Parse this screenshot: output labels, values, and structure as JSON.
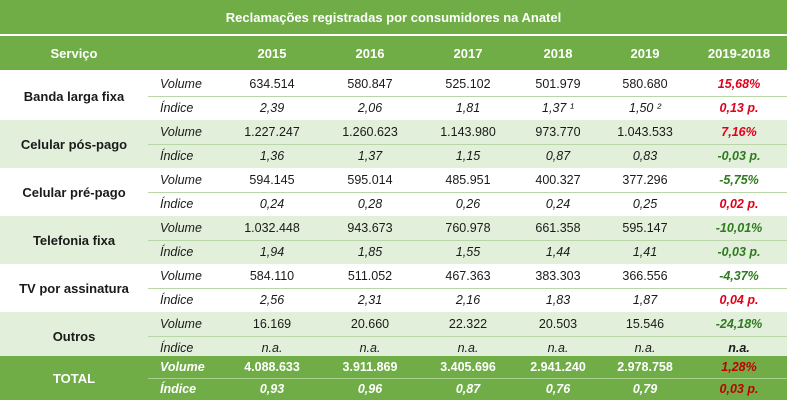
{
  "title": "Reclamações registradas por consumidores na Anatel",
  "header": {
    "service": "Serviço",
    "years": [
      "2015",
      "2016",
      "2017",
      "2018",
      "2019"
    ],
    "change": "2019-2018"
  },
  "services": [
    {
      "name": "Banda larga fixa",
      "volume": {
        "label": "Volume",
        "values": [
          "634.514",
          "580.847",
          "525.102",
          "501.979",
          "580.680"
        ],
        "change": "15,68%",
        "dir": "pos"
      },
      "index": {
        "label": "Índice",
        "values": [
          "2,39",
          "2,06",
          "1,81",
          "1,37 ¹",
          "1,50 ²"
        ],
        "change": "0,13 p.",
        "dir": "pos"
      }
    },
    {
      "name": "Celular pós-pago",
      "volume": {
        "label": "Volume",
        "values": [
          "1.227.247",
          "1.260.623",
          "1.143.980",
          "973.770",
          "1.043.533"
        ],
        "change": "7,16%",
        "dir": "pos"
      },
      "index": {
        "label": "Índice",
        "values": [
          "1,36",
          "1,37",
          "1,15",
          "0,87",
          "0,83"
        ],
        "change": "-0,03 p.",
        "dir": "neg"
      }
    },
    {
      "name": "Celular pré-pago",
      "volume": {
        "label": "Volume",
        "values": [
          "594.145",
          "595.014",
          "485.951",
          "400.327",
          "377.296"
        ],
        "change": "-5,75%",
        "dir": "neg"
      },
      "index": {
        "label": "Índice",
        "values": [
          "0,24",
          "0,28",
          "0,26",
          "0,24",
          "0,25"
        ],
        "change": "0,02 p.",
        "dir": "pos"
      }
    },
    {
      "name": "Telefonia fixa",
      "volume": {
        "label": "Volume",
        "values": [
          "1.032.448",
          "943.673",
          "760.978",
          "661.358",
          "595.147"
        ],
        "change": "-10,01%",
        "dir": "neg"
      },
      "index": {
        "label": "Índice",
        "values": [
          "1,94",
          "1,85",
          "1,55",
          "1,44",
          "1,41"
        ],
        "change": "-0,03 p.",
        "dir": "neg"
      }
    },
    {
      "name": "TV por assinatura",
      "volume": {
        "label": "Volume",
        "values": [
          "584.110",
          "511.052",
          "467.363",
          "383.303",
          "366.556"
        ],
        "change": "-4,37%",
        "dir": "neg"
      },
      "index": {
        "label": "Índice",
        "values": [
          "2,56",
          "2,31",
          "2,16",
          "1,83",
          "1,87"
        ],
        "change": "0,04 p.",
        "dir": "pos"
      }
    },
    {
      "name": "Outros",
      "volume": {
        "label": "Volume",
        "values": [
          "16.169",
          "20.660",
          "22.322",
          "20.503",
          "15.546"
        ],
        "change": "-24,18%",
        "dir": "neg"
      },
      "index": {
        "label": "Índice",
        "values": [
          "n.a.",
          "n.a.",
          "n.a.",
          "n.a.",
          "n.a."
        ],
        "change": "n.a.",
        "dir": "none"
      }
    }
  ],
  "total": {
    "name": "TOTAL",
    "volume": {
      "label": "Volume",
      "values": [
        "4.088.633",
        "3.911.869",
        "3.405.696",
        "2.941.240",
        "2.978.758"
      ],
      "change": "1,28%",
      "dir": "pos"
    },
    "index": {
      "label": "Índice",
      "values": [
        "0,93",
        "0,96",
        "0,87",
        "0,76",
        "0,79"
      ],
      "change": "0,03 p.",
      "dir": "pos"
    }
  },
  "colors": {
    "header_green": "#70ad47",
    "band_green": "#e2efda",
    "negative": "#2f7a1f",
    "positive": "#e0001b"
  }
}
